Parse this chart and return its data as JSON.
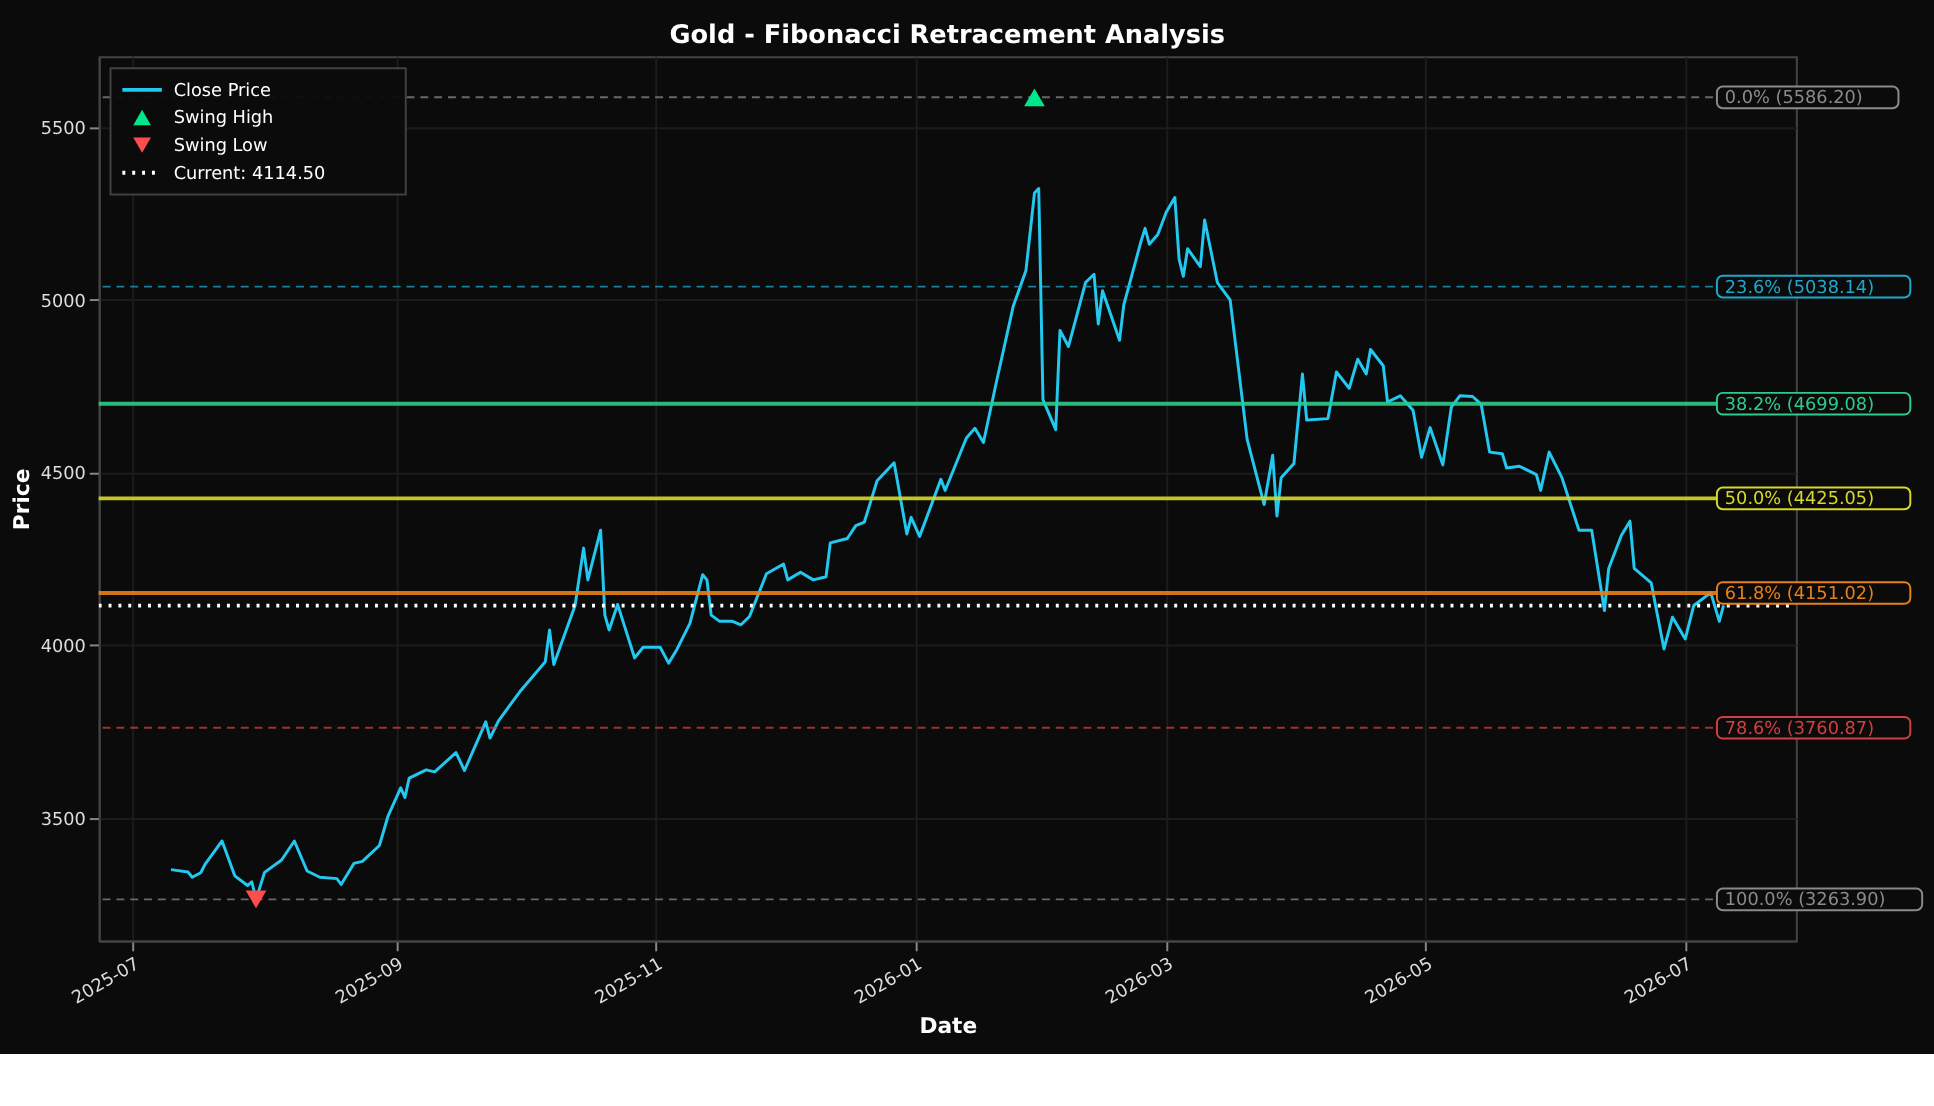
{
  "chart_data": {
    "type": "line",
    "title": "Gold - Fibonacci Retracement Analysis",
    "xlabel": "Date",
    "ylabel": "Price",
    "xlim": [
      "2025-06-23",
      "2026-07-27"
    ],
    "xticks": [
      "2025-07",
      "2025-09",
      "2025-11",
      "2026-01",
      "2026-03",
      "2026-05",
      "2026-07"
    ],
    "ylim": [
      3145,
      5705
    ],
    "yticks": [
      3500,
      4000,
      4500,
      5000,
      5500
    ],
    "grid": true,
    "legend": "top left",
    "series": [
      {
        "name": "Close Price",
        "color": "#22c8f0",
        "line_style": "solid",
        "x": [
          "2025-07-10",
          "2025-07-14",
          "2025-07-15",
          "2025-07-17",
          "2025-07-18",
          "2025-07-22",
          "2025-07-25",
          "2025-07-28",
          "2025-07-29",
          "2025-07-30",
          "2025-08-01",
          "2025-08-05",
          "2025-08-08",
          "2025-08-11",
          "2025-08-14",
          "2025-08-18",
          "2025-08-19",
          "2025-08-22",
          "2025-08-24",
          "2025-08-28",
          "2025-08-30",
          "2025-09-02",
          "2025-09-03",
          "2025-09-04",
          "2025-09-08",
          "2025-09-10",
          "2025-09-15",
          "2025-09-17",
          "2025-09-22",
          "2025-09-23",
          "2025-09-25",
          "2025-09-30",
          "2025-10-06",
          "2025-10-07",
          "2025-10-08",
          "2025-10-13",
          "2025-10-15",
          "2025-10-16",
          "2025-10-19",
          "2025-10-20",
          "2025-10-21",
          "2025-10-23",
          "2025-10-27",
          "2025-10-29",
          "2025-11-02",
          "2025-11-04",
          "2025-11-06",
          "2025-11-09",
          "2025-11-12",
          "2025-11-13",
          "2025-11-14",
          "2025-11-16",
          "2025-11-19",
          "2025-11-21",
          "2025-11-23",
          "2025-11-27",
          "2025-12-01",
          "2025-12-02",
          "2025-12-05",
          "2025-12-08",
          "2025-12-11",
          "2025-12-12",
          "2025-12-16",
          "2025-12-18",
          "2025-12-20",
          "2025-12-23",
          "2025-12-27",
          "2025-12-30",
          "2025-12-31",
          "2026-01-02",
          "2026-01-07",
          "2026-01-08",
          "2026-01-13",
          "2026-01-15",
          "2026-01-17",
          "2026-01-20",
          "2026-01-24",
          "2026-01-27",
          "2026-01-29",
          "2026-01-30",
          "2026-01-31",
          "2026-02-03",
          "2026-02-04",
          "2026-02-06",
          "2026-02-08",
          "2026-02-10",
          "2026-02-12",
          "2026-02-13",
          "2026-02-14",
          "2026-02-18",
          "2026-02-19",
          "2026-02-23",
          "2026-02-24",
          "2026-02-25",
          "2026-02-27",
          "2026-03-01",
          "2026-03-03",
          "2026-03-04",
          "2026-03-05",
          "2026-03-06",
          "2026-03-09",
          "2026-03-10",
          "2026-03-13",
          "2026-03-16",
          "2026-03-20",
          "2026-03-24",
          "2026-03-26",
          "2026-03-27",
          "2026-03-28",
          "2026-03-31",
          "2026-04-02",
          "2026-04-03",
          "2026-04-08",
          "2026-04-10",
          "2026-04-13",
          "2026-04-15",
          "2026-04-17",
          "2026-04-18",
          "2026-04-21",
          "2026-04-22",
          "2026-04-25",
          "2026-04-28",
          "2026-04-30",
          "2026-05-02",
          "2026-05-05",
          "2026-05-07",
          "2026-05-09",
          "2026-05-12",
          "2026-05-14",
          "2026-05-16",
          "2026-05-19",
          "2026-05-20",
          "2026-05-23",
          "2026-05-27",
          "2026-05-28",
          "2026-05-30",
          "2026-06-02",
          "2026-06-06",
          "2026-06-09",
          "2026-06-12",
          "2026-06-13",
          "2026-06-16",
          "2026-06-18",
          "2026-06-19",
          "2026-06-23",
          "2026-06-26",
          "2026-06-28",
          "2026-07-01",
          "2026-07-03",
          "2026-07-07",
          "2026-07-09",
          "2026-07-10"
        ],
        "values": [
          3350,
          3343,
          3328,
          3341,
          3365,
          3433,
          3332,
          3304,
          3315,
          3264,
          3342,
          3378,
          3433,
          3346,
          3328,
          3324,
          3307,
          3368,
          3374,
          3420,
          3504,
          3587,
          3559,
          3615,
          3639,
          3633,
          3689,
          3637,
          3778,
          3731,
          3781,
          3865,
          3952,
          4044,
          3944,
          4115,
          4281,
          4189,
          4333,
          4087,
          4044,
          4118,
          3963,
          3994,
          3994,
          3948,
          3989,
          4063,
          4204,
          4189,
          4087,
          4069,
          4069,
          4059,
          4083,
          4207,
          4235,
          4189,
          4211,
          4189,
          4198,
          4296,
          4309,
          4346,
          4356,
          4476,
          4528,
          4322,
          4370,
          4315,
          4480,
          4448,
          4600,
          4628,
          4587,
          4759,
          4981,
          5085,
          5309,
          5322,
          4711,
          4624,
          4911,
          4865,
          4957,
          5050,
          5074,
          4930,
          5026,
          4883,
          4985,
          5167,
          5207,
          5161,
          5189,
          5254,
          5296,
          5118,
          5068,
          5148,
          5096,
          5231,
          5050,
          5000,
          4596,
          4407,
          4550,
          4374,
          4485,
          4526,
          4785,
          4652,
          4656,
          4791,
          4744,
          4828,
          4785,
          4856,
          4809,
          4704,
          4722,
          4680,
          4544,
          4630,
          4522,
          4689,
          4722,
          4720,
          4698,
          4559,
          4554,
          4513,
          4518,
          4494,
          4448,
          4559,
          4485,
          4333,
          4333,
          4100,
          4222,
          4318,
          4359,
          4222,
          4180,
          3989,
          4081,
          4018,
          4115,
          4152,
          4069,
          4115
        ]
      },
      {
        "name": "Swing High",
        "type": "scatter",
        "color": "#00e68a",
        "marker": "triangle",
        "x": [
          "2026-01-29"
        ],
        "values": [
          5586.2
        ]
      },
      {
        "name": "Swing Low",
        "type": "scatter",
        "color": "#ff4d4d",
        "marker": "triangle-down",
        "x": [
          "2025-07-30"
        ],
        "values": [
          3263.9
        ]
      },
      {
        "name": "Current: 4114.50",
        "type": "line",
        "color": "#ffffff",
        "line_style": "dotted",
        "x": [
          "2025-06-23",
          "2026-07-27"
        ],
        "values": [
          4114.5,
          4114.5
        ]
      }
    ],
    "ref_lines": [
      {
        "axis": "y",
        "value": 5586.2,
        "label": "0.0% (5586.20)",
        "color": "#8a8a8a",
        "line_style": "dashed"
      },
      {
        "axis": "y",
        "value": 5038.14,
        "label": "23.6% (5038.14)",
        "color": "#1fa8cc",
        "line_style": "dashed"
      },
      {
        "axis": "y",
        "value": 4699.08,
        "label": "38.2% (4699.08)",
        "color": "#2ecc8a",
        "line_style": "solid"
      },
      {
        "axis": "y",
        "value": 4425.05,
        "label": "50.0% (4425.05)",
        "color": "#d8d82a",
        "line_style": "solid"
      },
      {
        "axis": "y",
        "value": 4151.02,
        "label": "61.8% (4151.02)",
        "color": "#e8801a",
        "line_style": "solid"
      },
      {
        "axis": "y",
        "value": 3760.87,
        "label": "78.6% (3760.87)",
        "color": "#d04040",
        "line_style": "dashed"
      },
      {
        "axis": "y",
        "value": 3263.9,
        "label": "100.0% (3263.90)",
        "color": "#8a8a8a",
        "line_style": "dashed"
      }
    ]
  }
}
